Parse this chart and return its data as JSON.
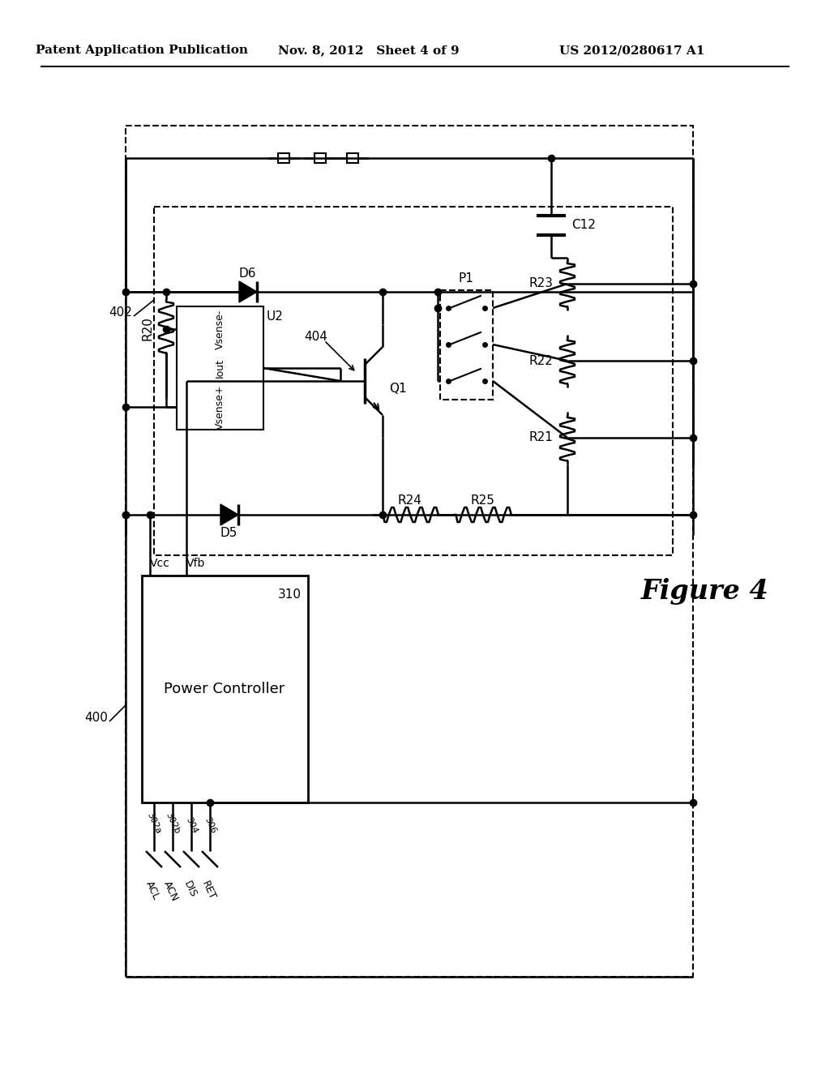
{
  "title_left": "Patent Application Publication",
  "title_mid": "Nov. 8, 2012   Sheet 4 of 9",
  "title_right": "US 2012/0280617 A1",
  "figure_label": "Figure 4",
  "bg_color": "#ffffff",
  "line_color": "#000000",
  "font_color": "#000000",
  "lw": 1.8
}
